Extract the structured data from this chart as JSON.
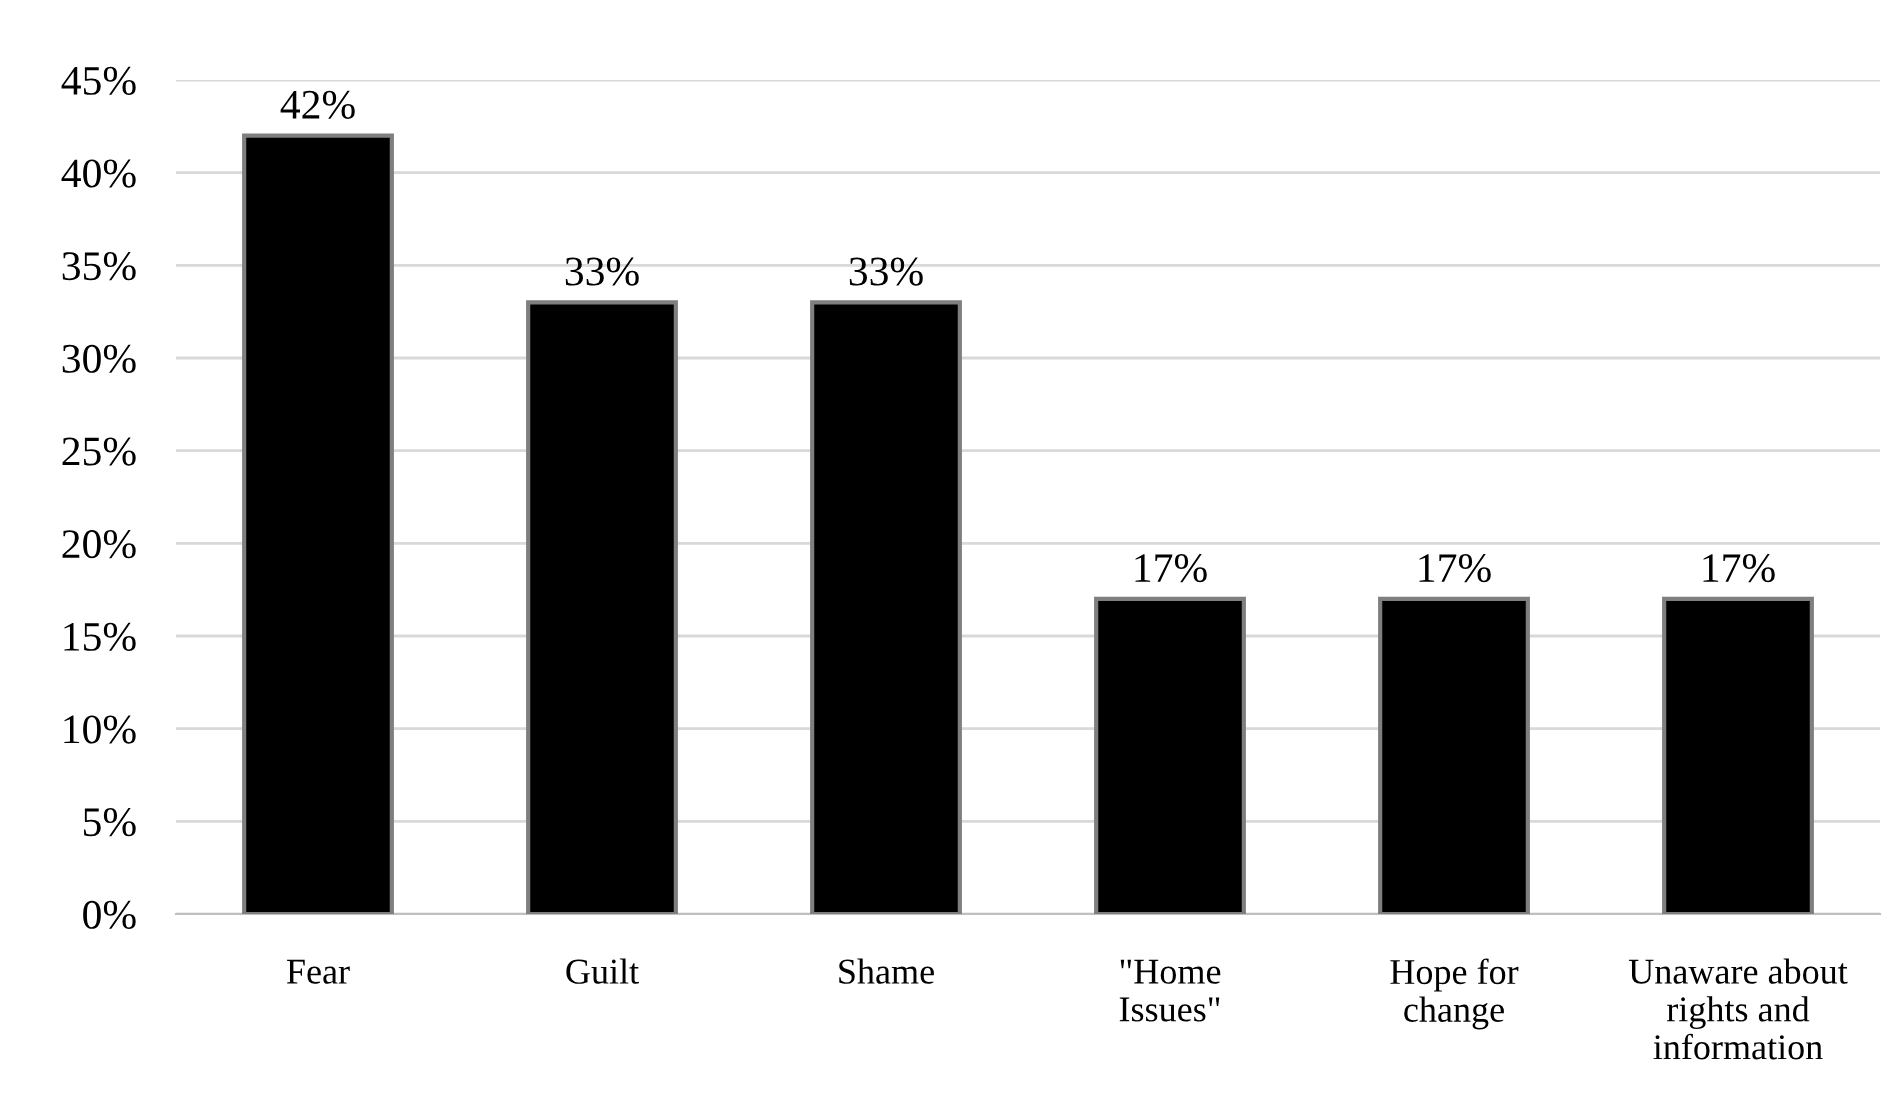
{
  "chart_data": {
    "type": "bar",
    "categories": [
      "Fear",
      "Guilt",
      "Shame",
      "\"Home\nIssues\"",
      "Hope for\nchange",
      "Unaware about\nrights and\ninformation"
    ],
    "values": [
      42,
      33,
      33,
      17,
      17,
      17
    ],
    "value_labels": [
      "42%",
      "33%",
      "33%",
      "17%",
      "17%",
      "17%"
    ],
    "color": "#000000",
    "ylim": [
      0,
      45
    ],
    "yticks": [
      {
        "value": 0,
        "label": "0%"
      },
      {
        "value": 5,
        "label": "5%"
      },
      {
        "value": 10,
        "label": "10%"
      },
      {
        "value": 15,
        "label": "15%"
      },
      {
        "value": 20,
        "label": "20%"
      },
      {
        "value": 25,
        "label": "25%"
      },
      {
        "value": 30,
        "label": "30%"
      },
      {
        "value": 35,
        "label": "35%"
      },
      {
        "value": 40,
        "label": "40%"
      },
      {
        "value": 45,
        "label": "45%"
      }
    ],
    "grid": "y",
    "legend": false
  }
}
